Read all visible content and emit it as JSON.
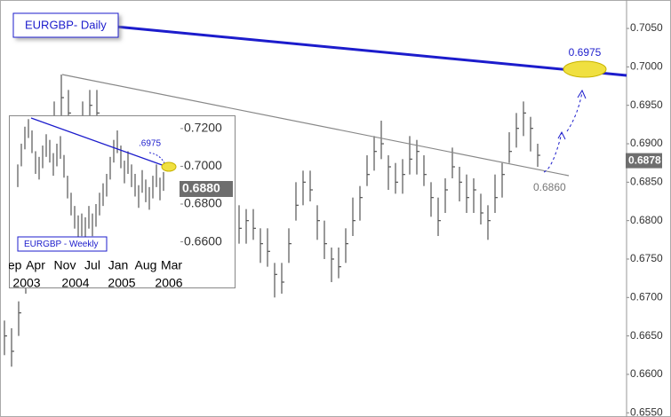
{
  "chart_data": [
    {
      "type": "ohlc",
      "title": "EURGBP- Daily",
      "high": [
        0.667,
        0.666,
        0.6695,
        0.6745,
        0.68,
        0.687,
        0.6905,
        0.6955,
        0.699,
        0.697,
        0.6935,
        0.6955,
        0.697,
        0.697,
        0.6925,
        0.6915,
        0.69,
        0.689,
        0.6865,
        0.6885,
        0.686,
        0.686,
        0.6855,
        0.6845,
        0.683,
        0.685,
        0.6815,
        0.6835,
        0.681,
        0.683,
        0.6795,
        0.6815,
        0.68,
        0.682,
        0.6815,
        0.6815,
        0.679,
        0.679,
        0.6745,
        0.6745,
        0.679,
        0.685,
        0.6865,
        0.6865,
        0.682,
        0.68,
        0.6765,
        0.6765,
        0.679,
        0.683,
        0.6845,
        0.6885,
        0.691,
        0.693,
        0.6885,
        0.6875,
        0.688,
        0.691,
        0.6905,
        0.6885,
        0.685,
        0.683,
        0.6855,
        0.6895,
        0.687,
        0.686,
        0.6855,
        0.6835,
        0.682,
        0.686,
        0.6875,
        0.6915,
        0.694,
        0.6955,
        0.6935,
        0.69
      ],
      "low": [
        0.6625,
        0.661,
        0.665,
        0.6705,
        0.6755,
        0.682,
        0.686,
        0.6915,
        0.6935,
        0.692,
        0.689,
        0.6915,
        0.6925,
        0.692,
        0.688,
        0.6875,
        0.6855,
        0.684,
        0.682,
        0.6845,
        0.6815,
        0.681,
        0.681,
        0.6805,
        0.6785,
        0.68,
        0.677,
        0.6795,
        0.6765,
        0.678,
        0.675,
        0.6775,
        0.6755,
        0.677,
        0.677,
        0.6775,
        0.6745,
        0.674,
        0.67,
        0.6705,
        0.6745,
        0.68,
        0.682,
        0.6825,
        0.6775,
        0.675,
        0.672,
        0.6725,
        0.6745,
        0.678,
        0.68,
        0.6845,
        0.6865,
        0.688,
        0.684,
        0.6835,
        0.6835,
        0.686,
        0.686,
        0.6845,
        0.6805,
        0.678,
        0.681,
        0.6855,
        0.6825,
        0.681,
        0.681,
        0.6795,
        0.6775,
        0.681,
        0.683,
        0.6875,
        0.6895,
        0.691,
        0.689,
        0.687
      ],
      "close": [
        0.665,
        0.663,
        0.668,
        0.672,
        0.678,
        0.684,
        0.689,
        0.693,
        0.696,
        0.694,
        0.692,
        0.693,
        0.695,
        0.694,
        0.691,
        0.689,
        0.688,
        0.686,
        0.685,
        0.686,
        0.684,
        0.683,
        0.684,
        0.682,
        0.681,
        0.682,
        0.68,
        0.681,
        0.679,
        0.68,
        0.678,
        0.679,
        0.678,
        0.679,
        0.68,
        0.679,
        0.677,
        0.676,
        0.673,
        0.672,
        0.677,
        0.682,
        0.685,
        0.684,
        0.68,
        0.677,
        0.675,
        0.674,
        0.677,
        0.68,
        0.683,
        0.686,
        0.689,
        0.69,
        0.687,
        0.685,
        0.686,
        0.688,
        0.689,
        0.686,
        0.683,
        0.68,
        0.684,
        0.687,
        0.685,
        0.683,
        0.684,
        0.681,
        0.68,
        0.683,
        0.686,
        0.689,
        0.692,
        0.694,
        0.692,
        0.6885
      ],
      "color": "#555555",
      "ylim": [
        0.6548,
        0.7087
      ],
      "yticks": [
        {
          "value": 0.655,
          "label": "0.6550"
        },
        {
          "value": 0.66,
          "label": "0.6600"
        },
        {
          "value": 0.665,
          "label": "0.6650"
        },
        {
          "value": 0.67,
          "label": "0.6700"
        },
        {
          "value": 0.675,
          "label": "0.6750"
        },
        {
          "value": 0.68,
          "label": "0.6800"
        },
        {
          "value": 0.685,
          "label": "0.6850"
        },
        {
          "value": 0.69,
          "label": "0.6900"
        },
        {
          "value": 0.695,
          "label": "0.6950"
        },
        {
          "value": 0.7,
          "label": "0.7000"
        },
        {
          "value": 0.705,
          "label": "0.7050"
        }
      ],
      "last_price": 0.6878,
      "annotations": [
        "0.6975",
        "0.6860"
      ]
    },
    {
      "type": "ohlc",
      "title": "EURGBP - Weekly",
      "high": [
        0.701,
        0.712,
        0.721,
        0.725,
        0.719,
        0.708,
        0.705,
        0.711,
        0.717,
        0.714,
        0.707,
        0.712,
        0.716,
        0.706,
        0.695,
        0.686,
        0.679,
        0.674,
        0.675,
        0.673,
        0.679,
        0.675,
        0.68,
        0.686,
        0.691,
        0.696,
        0.705,
        0.714,
        0.719,
        0.711,
        0.703,
        0.708,
        0.701,
        0.696,
        0.69,
        0.698,
        0.693,
        0.689,
        0.695,
        0.701,
        0.694,
        0.697
      ],
      "low": [
        0.689,
        0.7,
        0.709,
        0.715,
        0.707,
        0.696,
        0.693,
        0.699,
        0.705,
        0.702,
        0.695,
        0.7,
        0.704,
        0.694,
        0.683,
        0.674,
        0.667,
        0.662,
        0.663,
        0.661,
        0.667,
        0.663,
        0.668,
        0.674,
        0.679,
        0.684,
        0.693,
        0.702,
        0.707,
        0.699,
        0.691,
        0.696,
        0.689,
        0.684,
        0.678,
        0.686,
        0.681,
        0.677,
        0.683,
        0.689,
        0.682,
        0.687
      ],
      "color": "#555555",
      "ylim": [
        0.6518,
        0.7256
      ],
      "yticks": [
        {
          "value": 0.66,
          "label": "0.6600"
        },
        {
          "value": 0.68,
          "label": "0.6800"
        },
        {
          "value": 0.7,
          "label": "0.7000"
        },
        {
          "value": 0.72,
          "label": "0.7200"
        }
      ],
      "last_price": {
        "value": 0.688,
        "label": "0.6880"
      },
      "xtick_labels": [
        "Sep",
        "Apr",
        "Nov",
        "Jul",
        "Jan",
        "Aug",
        "Mar"
      ],
      "xtick_years": [
        "2003",
        "2004",
        "2005",
        "2006"
      ],
      "annotations": [
        ".6975"
      ]
    }
  ]
}
